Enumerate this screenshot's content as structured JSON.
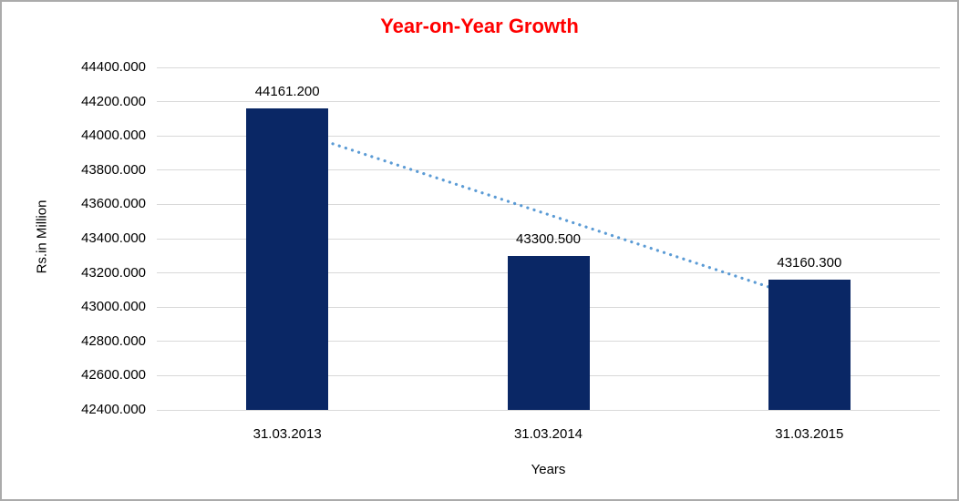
{
  "chart_data": {
    "type": "bar",
    "title": "Year-on-Year Growth",
    "categories": [
      "31.03.2013",
      "31.03.2014",
      "31.03.2015"
    ],
    "values": [
      44161.2,
      43300.5,
      43160.3
    ],
    "data_labels": [
      "44161.200",
      "43300.500",
      "43160.300"
    ],
    "xlabel": "Years",
    "ylabel": "Rs.in Million",
    "ylim": [
      42400,
      44400
    ],
    "ytick_step": 200,
    "ytick_labels": [
      "44400.000",
      "44200.000",
      "44000.000",
      "43800.000",
      "43600.000",
      "43400.000",
      "43200.000",
      "43000.000",
      "42800.000",
      "42600.000",
      "42400.000"
    ],
    "grid": true,
    "legend_position": "none",
    "trendline": {
      "fit": "linear",
      "style": "dotted",
      "color": "#5b9bd5"
    },
    "colors": {
      "bar": "#0a2765",
      "gridline": "#d9d9d9",
      "title": "#ff0000",
      "text": "#000000",
      "border": "#ababab",
      "background": "#ffffff"
    }
  }
}
